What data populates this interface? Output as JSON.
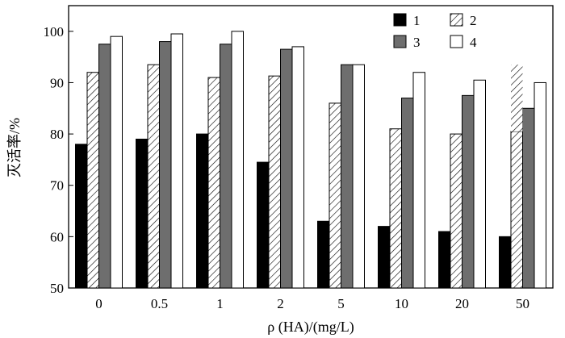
{
  "chart_data": {
    "type": "bar",
    "categories": [
      "0",
      "0.5",
      "1",
      "2",
      "5",
      "10",
      "20",
      "50"
    ],
    "series": [
      {
        "name": "1",
        "values": [
          78,
          79,
          80,
          74.5,
          63,
          62,
          61,
          60
        ],
        "fill": "#000000",
        "pattern": "solid"
      },
      {
        "name": "2",
        "values": [
          92,
          93.5,
          91,
          91.3,
          86,
          81,
          80,
          80.5
        ],
        "fill": "#ffffff",
        "pattern": "hatch"
      },
      {
        "name": "3",
        "values": [
          97.5,
          98,
          97.5,
          96.5,
          93.5,
          87,
          87.5,
          85
        ],
        "fill": "#6e6e6e",
        "pattern": "solid"
      },
      {
        "name": "4",
        "values": [
          99,
          99.5,
          100,
          97,
          93.5,
          92,
          90.5,
          90
        ],
        "fill": "#ffffff",
        "pattern": "solid"
      }
    ],
    "extra_marks": [
      {
        "category": "50",
        "series": "2",
        "top": 93.5
      }
    ],
    "yticks": [
      "50",
      "60",
      "70",
      "80",
      "90",
      "100"
    ],
    "ylim": [
      50,
      105
    ],
    "xlabel": "ρ (HA)/(mg/L)",
    "ylabel": "灭活率/%",
    "legend_position": "top-right",
    "grid": false
  }
}
